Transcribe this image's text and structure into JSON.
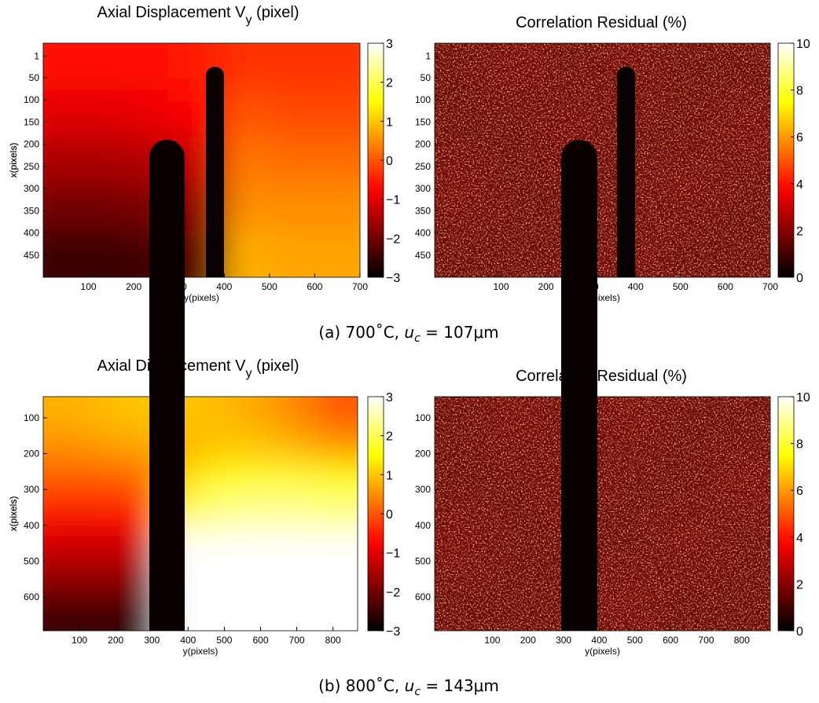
{
  "chart_data": [
    {
      "type": "heatmap",
      "colormap": "hot",
      "title": {
        "main": "Axial Displacement V",
        "sub": "y",
        "end": "(pixel)"
      },
      "xlabel": "y(pixels)",
      "ylabel": "x(pixels)",
      "xlim": [
        0,
        700
      ],
      "ylim": [
        -28,
        500
      ],
      "y_reversed": true,
      "xticks": [
        100,
        200,
        300,
        400,
        500,
        600,
        700
      ],
      "yticks": [
        1,
        50,
        100,
        150,
        200,
        250,
        300,
        350,
        400,
        450
      ],
      "clim": [
        -3,
        3
      ],
      "cticks": [
        {
          "value": -3,
          "label": "−3"
        },
        {
          "value": -2,
          "label": "−2"
        },
        {
          "value": -1,
          "label": "−1"
        },
        0,
        1,
        2,
        3
      ],
      "z": [
        [
          -0.6,
          -0.6,
          -0.6,
          -0.5,
          -0.3,
          -0.3,
          -0.3
        ],
        [
          -1.0,
          -1.0,
          -0.9,
          -0.7,
          0,
          -0.1,
          -0.1
        ],
        [
          -1.5,
          -1.5,
          -1.4,
          -1.2,
          0.3,
          0.2,
          0.2
        ],
        [
          -2.0,
          -2.0,
          -1.9,
          -1.7,
          0.5,
          0.5,
          0.5
        ],
        [
          -2.5,
          -2.5,
          -2.4,
          -2.2,
          0.8,
          0.7,
          0.7
        ]
      ]
    },
    {
      "type": "heatmap",
      "colormap": "hot",
      "noise": true,
      "title": {
        "main": "Correlation Residual (%)"
      },
      "xlabel": "y(pixels)",
      "ylabel": "x(pixels)",
      "xlim": [
        -48,
        700
      ],
      "ylim": [
        -28,
        500
      ],
      "y_reversed": true,
      "xticks": [
        100,
        200,
        300,
        400,
        500,
        600,
        700
      ],
      "yticks": [
        1,
        50,
        100,
        150,
        200,
        250,
        300,
        350,
        400,
        450
      ],
      "clim": [
        0,
        10
      ],
      "cticks": [
        0,
        2,
        4,
        6,
        8,
        10
      ],
      "z": [
        [
          1.5,
          1.6,
          1.5,
          1.6,
          1.5,
          1.5
        ],
        [
          1.5,
          1.5,
          1.6,
          1.5,
          1.5,
          1.6
        ],
        [
          1.6,
          1.5,
          1.5,
          1.5,
          1.6,
          1.5
        ],
        [
          1.5,
          1.5,
          1.5,
          1.6,
          1.5,
          1.5
        ]
      ]
    },
    {
      "type": "heatmap",
      "colormap": "hot",
      "title": {
        "main": "Axial Displacement V",
        "sub": "y",
        "end": "(pixel)"
      },
      "xlabel": "y(pixels)",
      "ylabel": "x(pixels)",
      "xlim": [
        0,
        868
      ],
      "ylim": [
        41,
        694
      ],
      "y_reversed": true,
      "xticks": [
        100,
        200,
        300,
        400,
        500,
        600,
        700,
        800
      ],
      "yticks": [
        100,
        200,
        300,
        400,
        500,
        600
      ],
      "clim": [
        -3,
        3
      ],
      "cticks": [
        {
          "value": -3,
          "label": "−3"
        },
        {
          "value": -2,
          "label": "−2"
        },
        {
          "value": -1,
          "label": "−1"
        },
        0,
        1,
        2,
        3
      ],
      "z": [
        [
          0.8,
          0.9,
          1.0,
          1.0,
          0.9,
          0.7,
          0.4,
          0.0
        ],
        [
          0.5,
          0.6,
          0.7,
          0.8,
          1.0,
          1.0,
          0.8,
          0.6
        ],
        [
          0.0,
          0.0,
          0.1,
          1.2,
          1.6,
          1.8,
          1.8,
          1.6
        ],
        [
          -0.6,
          -0.6,
          -0.6,
          2.0,
          2.3,
          2.4,
          2.4,
          2.3
        ],
        [
          -1.2,
          -1.2,
          -1.2,
          3,
          3,
          3,
          3,
          3
        ],
        [
          -1.8,
          -1.8,
          -1.8,
          3,
          3,
          3,
          3,
          3
        ],
        [
          -2.5,
          -2.5,
          -2.5,
          3,
          3,
          3,
          3,
          3
        ]
      ]
    },
    {
      "type": "heatmap",
      "colormap": "hot",
      "noise": true,
      "title": {
        "main": "Correlation Residual (%)"
      },
      "xlabel": "y(pixels)",
      "ylabel": "x(pixels)",
      "xlim": [
        -62,
        880
      ],
      "ylim": [
        41,
        694
      ],
      "y_reversed": true,
      "xticks": [
        100,
        200,
        300,
        400,
        500,
        600,
        700,
        800
      ],
      "yticks": [
        100,
        200,
        300,
        400,
        500,
        600
      ],
      "clim": [
        0,
        10
      ],
      "cticks": [
        0,
        2,
        4,
        6,
        8,
        10
      ],
      "z": [
        [
          1.5,
          1.6,
          1.5,
          1.6,
          1.5,
          1.5
        ],
        [
          1.5,
          1.5,
          1.6,
          1.5,
          1.5,
          1.6
        ],
        [
          1.6,
          1.5,
          1.5,
          1.5,
          1.6,
          1.5
        ],
        [
          1.5,
          1.5,
          1.5,
          1.6,
          1.5,
          1.5
        ]
      ]
    }
  ],
  "captions": [
    {
      "prefix": "(a) 700˚C,",
      "var": "u",
      "sub": "c",
      "rest": "= 107μm"
    },
    {
      "prefix": "(b) 800˚C,",
      "var": "u",
      "sub": "c",
      "rest": "= 143μm"
    }
  ]
}
